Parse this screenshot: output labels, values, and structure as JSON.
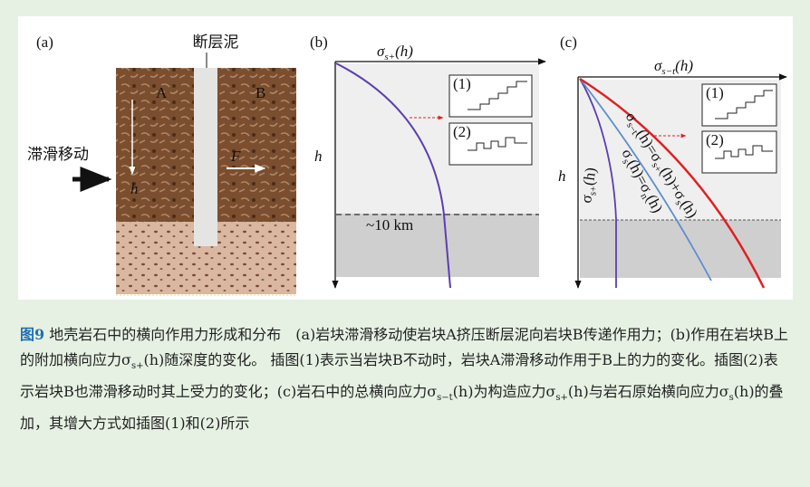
{
  "panel_a": {
    "label": "(a)",
    "fault_gouge": "断层泥",
    "motion": "滞滑移动",
    "block_a": "A",
    "block_b": "B",
    "depth": "h",
    "force": "F"
  },
  "panel_b": {
    "label": "(b)",
    "axis_title": [
      {
        "text": "σ"
      },
      {
        "sub": "s+"
      },
      {
        "text": "(h)"
      }
    ],
    "depth_axis": "h",
    "depth_marker": "~10 km",
    "insets": [
      "(1)",
      "(2)"
    ]
  },
  "panel_c": {
    "label": "(c)",
    "axis_title": [
      {
        "text": "σ"
      },
      {
        "sub": "s−t"
      },
      {
        "text": "(h)"
      }
    ],
    "depth_axis": "h",
    "insets": [
      "(1)",
      "(2)"
    ],
    "curve_labels": [
      [
        {
          "text": "σ"
        },
        {
          "sub": "s+"
        },
        {
          "text": "(h)"
        }
      ],
      [
        {
          "text": "σ"
        },
        {
          "sub": "s"
        },
        {
          "text": "(h)=σ"
        },
        {
          "sub": "n"
        },
        {
          "text": "(h)"
        }
      ],
      [
        {
          "text": "σ"
        },
        {
          "sub": "s−t"
        },
        {
          "text": "(h)=σ"
        },
        {
          "sub": "s+"
        },
        {
          "text": "(h)+σ"
        },
        {
          "sub": "s"
        },
        {
          "text": "(h)"
        }
      ]
    ]
  },
  "caption": [
    {
      "bold": "图9"
    },
    {
      "text": "  地壳岩石中的横向作用力形成和分布　(a)岩块滞滑移动使岩块A挤压断层泥向岩块B传递作用力；(b)作用在岩块B上的附加横向应力σ"
    },
    {
      "sub": "s+"
    },
    {
      "text": "(h)随深度的变化。 插图(1)表示当岩块B不动时，岩块A滞滑移动作用于B上的力的变化。插图(2)表示岩块B也滞滑移动时其上受力的变化；(c)岩石中的总横向应力σ"
    },
    {
      "sub": "s−t"
    },
    {
      "text": "(h)为构造应力σ"
    },
    {
      "sub": "s+"
    },
    {
      "text": "(h)与岩石原始横向应力σ"
    },
    {
      "sub": "s"
    },
    {
      "text": "(h)的叠加，其增大方式如插图(1)和(2)所示"
    }
  ]
}
